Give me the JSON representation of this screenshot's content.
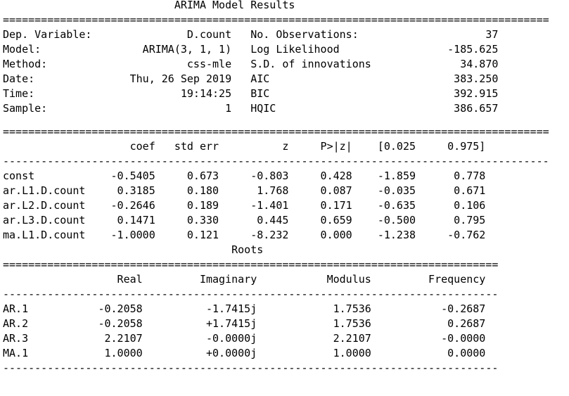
{
  "title": "ARIMA Model Results",
  "summary": {
    "rows": [
      {
        "left_label": "Dep. Variable:",
        "left_value": "D.count",
        "right_label": "No. Observations:",
        "right_value": "37"
      },
      {
        "left_label": "Model:",
        "left_value": "ARIMA(3, 1, 1)",
        "right_label": "Log Likelihood",
        "right_value": "-185.625"
      },
      {
        "left_label": "Method:",
        "left_value": "css-mle",
        "right_label": "S.D. of innovations",
        "right_value": "34.870"
      },
      {
        "left_label": "Date:",
        "left_value": "Thu, 26 Sep 2019",
        "right_label": "AIC",
        "right_value": "383.250"
      },
      {
        "left_label": "Time:",
        "left_value": "19:14:25",
        "right_label": "BIC",
        "right_value": "392.915"
      },
      {
        "left_label": "Sample:",
        "left_value": "1",
        "right_label": "HQIC",
        "right_value": "386.657"
      }
    ]
  },
  "coef_table": {
    "headers": [
      "",
      "coef",
      "std err",
      "z",
      "P>|z|",
      "[0.025",
      "0.975]"
    ],
    "rows": [
      [
        "const",
        "-0.5405",
        "0.673",
        "-0.803",
        "0.428",
        "-1.859",
        "0.778"
      ],
      [
        "ar.L1.D.count",
        "0.3185",
        "0.180",
        "1.768",
        "0.087",
        "-0.035",
        "0.671"
      ],
      [
        "ar.L2.D.count",
        "-0.2646",
        "0.189",
        "-1.401",
        "0.171",
        "-0.635",
        "0.106"
      ],
      [
        "ar.L3.D.count",
        "0.1471",
        "0.330",
        "0.445",
        "0.659",
        "-0.500",
        "0.795"
      ],
      [
        "ma.L1.D.count",
        "-1.0000",
        "0.121",
        "-8.232",
        "0.000",
        "-1.238",
        "-0.762"
      ]
    ]
  },
  "roots_title": "Roots",
  "roots_table": {
    "headers": [
      "",
      "Real",
      "Imaginary",
      "Modulus",
      "Frequency"
    ],
    "rows": [
      [
        "AR.1",
        "-0.2058",
        "-1.7415j",
        "1.7536",
        "-0.2687"
      ],
      [
        "AR.2",
        "-0.2058",
        "+1.7415j",
        "1.7536",
        "0.2687"
      ],
      [
        "AR.3",
        "2.2107",
        "-0.0000j",
        "2.2107",
        "-0.0000"
      ],
      [
        "MA.1",
        "1.0000",
        "+0.0000j",
        "1.0000",
        "0.0000"
      ]
    ]
  }
}
